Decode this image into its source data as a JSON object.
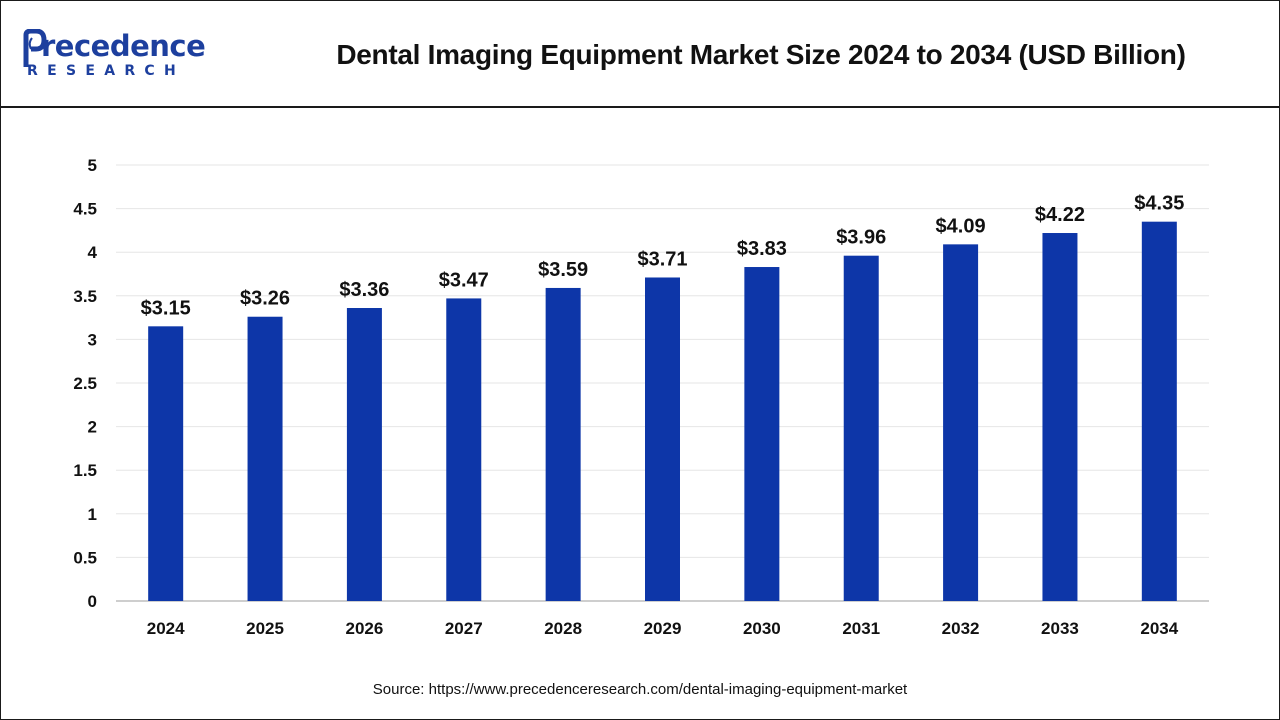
{
  "header": {
    "logo_word": "recedence",
    "logo_initial": "P",
    "logo_sub": "RESEARCH",
    "title": "Dental Imaging Equipment Market Size 2024 to 2034 (USD Billion)"
  },
  "footer": {
    "source": "Source: https://www.precedenceresearch.com/dental-imaging-equipment-market"
  },
  "colors": {
    "bar": "#0d36a8",
    "logo": "#1d3f9e",
    "gridline": "#e6e6e6",
    "axis": "#bdbdbd",
    "text": "#111111"
  },
  "chart_data": {
    "type": "bar",
    "categories": [
      "2024",
      "2025",
      "2026",
      "2027",
      "2028",
      "2029",
      "2030",
      "2031",
      "2032",
      "2033",
      "2034"
    ],
    "values": [
      3.15,
      3.26,
      3.36,
      3.47,
      3.59,
      3.71,
      3.83,
      3.96,
      4.09,
      4.22,
      4.35
    ],
    "data_labels": [
      "$3.15",
      "$3.26",
      "$3.36",
      "$3.47",
      "$3.59",
      "$3.71",
      "$3.83",
      "$3.96",
      "$4.09",
      "$4.22",
      "$4.35"
    ],
    "y_ticks": [
      "0",
      "0.5",
      "1",
      "1.5",
      "2",
      "2.5",
      "3",
      "3.5",
      "4",
      "4.5",
      "5"
    ],
    "ylim": [
      0,
      5
    ],
    "title": "Dental Imaging Equipment Market Size 2024 to 2034 (USD Billion)",
    "xlabel": "",
    "ylabel": "",
    "grid": true,
    "legend": "none"
  }
}
